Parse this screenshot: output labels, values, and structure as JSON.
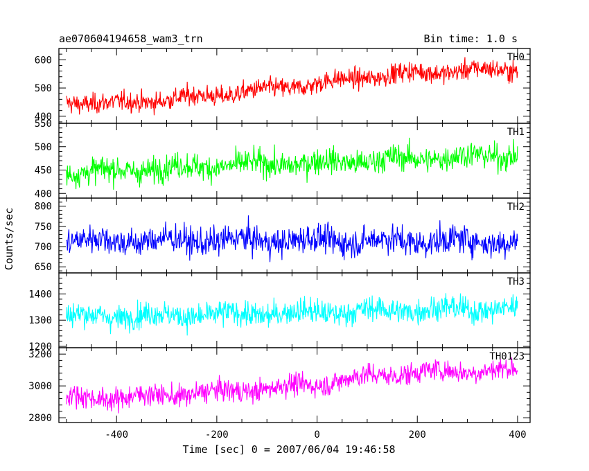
{
  "chart_data": {
    "type": "line",
    "title": "ae070604194658_wam3_trn",
    "subtitle": "Bin time: 1.0 s",
    "xlabel": "Time [sec] 0 = 2007/06/04 19:46:58",
    "ylabel": "Counts/sec",
    "xlim": [
      -515,
      425
    ],
    "xticks": [
      -400,
      -200,
      0,
      200,
      400
    ],
    "x_start": -500,
    "x_end": 400,
    "x_step": 1,
    "panels": [
      {
        "name": "TH0",
        "color": "#ff0000",
        "ylim": [
          375,
          640
        ],
        "yticks": [
          400,
          500,
          600
        ],
        "trend": [
          [
            -500,
            450
          ],
          [
            -400,
            445
          ],
          [
            -200,
            475
          ],
          [
            -100,
            495
          ],
          [
            0,
            515
          ],
          [
            100,
            540
          ],
          [
            200,
            555
          ],
          [
            300,
            562
          ],
          [
            400,
            565
          ]
        ],
        "noise": 28
      },
      {
        "name": "TH1",
        "color": "#00ff00",
        "ylim": [
          390,
          550
        ],
        "yticks": [
          400,
          450,
          500,
          550
        ],
        "trend": [
          [
            -500,
            445
          ],
          [
            -400,
            448
          ],
          [
            -200,
            460
          ],
          [
            0,
            465
          ],
          [
            200,
            475
          ],
          [
            400,
            483
          ]
        ],
        "noise": 22
      },
      {
        "name": "TH2",
        "color": "#0000ff",
        "ylim": [
          635,
          820
        ],
        "yticks": [
          650,
          700,
          750,
          800
        ],
        "trend": [
          [
            -500,
            715
          ],
          [
            0,
            715
          ],
          [
            400,
            713
          ]
        ],
        "noise": 28
      },
      {
        "name": "TH3",
        "color": "#00ffff",
        "ylim": [
          1195,
          1480
        ],
        "yticks": [
          1200,
          1300,
          1400
        ],
        "trend": [
          [
            -500,
            1315
          ],
          [
            -200,
            1320
          ],
          [
            0,
            1330
          ],
          [
            200,
            1340
          ],
          [
            400,
            1345
          ]
        ],
        "noise": 38
      },
      {
        "name": "TH0123",
        "color": "#ff00ff",
        "ylim": [
          2770,
          3240
        ],
        "yticks": [
          2800,
          3000,
          3200
        ],
        "trend": [
          [
            -500,
            2930
          ],
          [
            -400,
            2925
          ],
          [
            -200,
            2960
          ],
          [
            0,
            3010
          ],
          [
            100,
            3060
          ],
          [
            200,
            3085
          ],
          [
            300,
            3095
          ],
          [
            400,
            3100
          ]
        ],
        "noise": 55
      }
    ]
  }
}
